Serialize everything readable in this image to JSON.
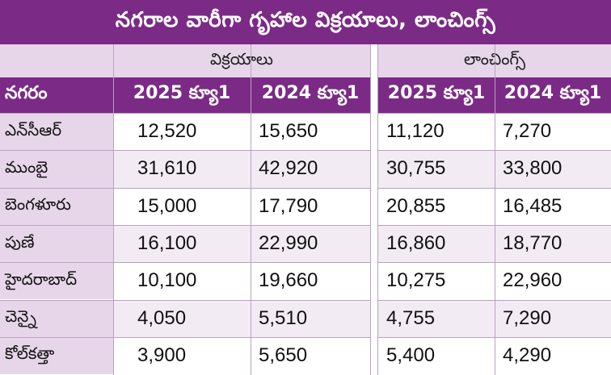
{
  "title": "నగరాల వారీగా గృహాల విక్రయాలు, లాంచింగ్స్",
  "groups": {
    "sales": "విక్రయాలు",
    "launches": "లాంచింగ్స్"
  },
  "columns": {
    "city": "నగరం",
    "sales_2025": "2025 క్యూ1",
    "sales_2024": "2024 క్యూ1",
    "launch_2025": "2025 క్యూ1",
    "launch_2024": "2024 క్యూ1"
  },
  "rows": [
    {
      "city": "ఎన్‌సీఆర్",
      "sales_2025": "12,520",
      "sales_2024": "15,650",
      "launch_2025": "11,120",
      "launch_2024": "7,270"
    },
    {
      "city": "ముంబై",
      "sales_2025": "31,610",
      "sales_2024": "42,920",
      "launch_2025": "30,755",
      "launch_2024": "33,800"
    },
    {
      "city": "బెంగళూరు",
      "sales_2025": "15,000",
      "sales_2024": "17,790",
      "launch_2025": "20,855",
      "launch_2024": "16,485"
    },
    {
      "city": "పుణే",
      "sales_2025": "16,100",
      "sales_2024": "22,990",
      "launch_2025": "16,860",
      "launch_2024": "18,770"
    },
    {
      "city": "హైదరాబాద్",
      "sales_2025": "10,100",
      "sales_2024": "19,660",
      "launch_2025": "10,275",
      "launch_2024": "22,960"
    },
    {
      "city": "చెన్నై",
      "sales_2025": "4,050",
      "sales_2024": "5,510",
      "launch_2025": "4,755",
      "launch_2024": "7,290"
    },
    {
      "city": "కోల్‌కత్తా",
      "sales_2025": "3,900",
      "sales_2024": "5,650",
      "launch_2025": "5,400",
      "launch_2024": "4,290"
    }
  ],
  "colors": {
    "header_purple": "#7b2a86",
    "light_purple": "#e7d6ea",
    "grid_line": "#b9a2bf"
  }
}
